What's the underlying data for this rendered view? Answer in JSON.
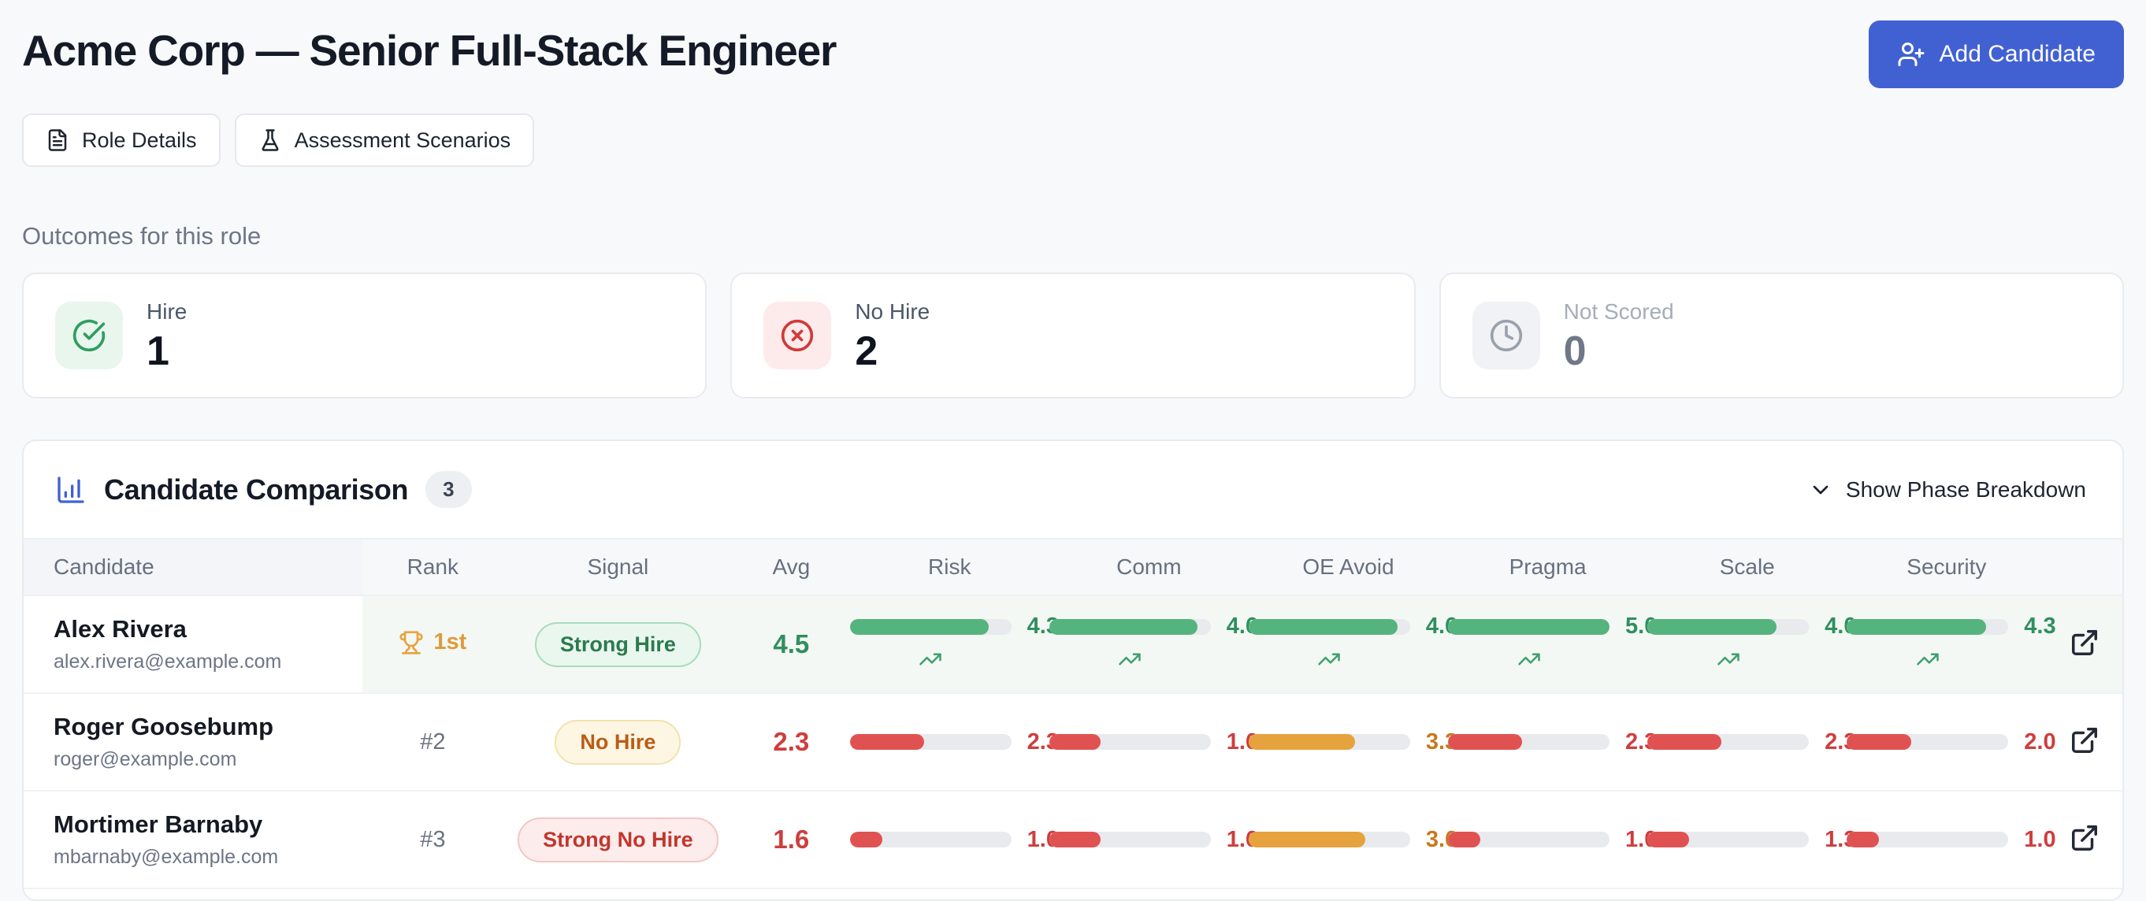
{
  "header": {
    "title": "Acme Corp — Senior Full-Stack Engineer",
    "add_candidate": "Add Candidate",
    "role_details": "Role Details",
    "assessment_scenarios": "Assessment Scenarios"
  },
  "outcomes": {
    "heading": "Outcomes for this role",
    "cards": [
      {
        "label": "Hire",
        "count": "1",
        "icon": "check-circle-icon",
        "variant": "success"
      },
      {
        "label": "No Hire",
        "count": "2",
        "icon": "x-circle-icon",
        "variant": "danger"
      },
      {
        "label": "Not Scored",
        "count": "0",
        "icon": "clock-icon",
        "variant": "muted"
      }
    ]
  },
  "comparison": {
    "title": "Candidate Comparison",
    "count_badge": "3",
    "toggle_label": "Show Phase Breakdown",
    "columns": [
      "Candidate",
      "Rank",
      "Signal",
      "Avg",
      "Risk",
      "Comm",
      "OE Avoid",
      "Pragma",
      "Scale",
      "Security"
    ],
    "score_scale_max": 5,
    "candidates": [
      {
        "name": "Alex Rivera",
        "email": "alex.rivera@example.com",
        "rank": "1st",
        "rank_trophy": true,
        "highlight": true,
        "signal": "Strong Hire",
        "signal_variant": "success",
        "avg": "4.5",
        "avg_variant": "success",
        "scores": [
          {
            "metric": "Risk",
            "value": 4.3,
            "variant": "success",
            "trend": "up"
          },
          {
            "metric": "Comm",
            "value": 4.6,
            "variant": "success",
            "trend": "up"
          },
          {
            "metric": "OE Avoid",
            "value": 4.6,
            "variant": "success",
            "trend": "up"
          },
          {
            "metric": "Pragma",
            "value": 5.0,
            "variant": "success",
            "trend": "up"
          },
          {
            "metric": "Scale",
            "value": 4.0,
            "variant": "success",
            "trend": "up"
          },
          {
            "metric": "Security",
            "value": 4.3,
            "variant": "success",
            "trend": "up"
          }
        ]
      },
      {
        "name": "Roger Goosebump",
        "email": "roger@example.com",
        "rank": "#2",
        "rank_trophy": false,
        "highlight": false,
        "signal": "No Hire",
        "signal_variant": "warn",
        "avg": "2.3",
        "avg_variant": "danger",
        "scores": [
          {
            "metric": "Risk",
            "value": 2.3,
            "variant": "danger"
          },
          {
            "metric": "Comm",
            "value": 1.6,
            "variant": "danger"
          },
          {
            "metric": "OE Avoid",
            "value": 3.3,
            "variant": "warn"
          },
          {
            "metric": "Pragma",
            "value": 2.3,
            "variant": "danger"
          },
          {
            "metric": "Scale",
            "value": 2.3,
            "variant": "danger"
          },
          {
            "metric": "Security",
            "value": 2.0,
            "variant": "danger"
          }
        ]
      },
      {
        "name": "Mortimer Barnaby",
        "email": "mbarnaby@example.com",
        "rank": "#3",
        "rank_trophy": false,
        "highlight": false,
        "signal": "Strong No Hire",
        "signal_variant": "danger",
        "avg": "1.6",
        "avg_variant": "danger",
        "scores": [
          {
            "metric": "Risk",
            "value": 1.0,
            "variant": "danger"
          },
          {
            "metric": "Comm",
            "value": 1.6,
            "variant": "danger"
          },
          {
            "metric": "OE Avoid",
            "value": 3.6,
            "variant": "warn"
          },
          {
            "metric": "Pragma",
            "value": 1.0,
            "variant": "danger"
          },
          {
            "metric": "Scale",
            "value": 1.3,
            "variant": "danger"
          },
          {
            "metric": "Security",
            "value": 1.0,
            "variant": "danger"
          }
        ]
      }
    ]
  },
  "colors": {
    "accent_blue": "#4161d3",
    "success_green": "#2f8f5e",
    "danger_red": "#cf3d3d",
    "warn_amber": "#c8781f"
  }
}
